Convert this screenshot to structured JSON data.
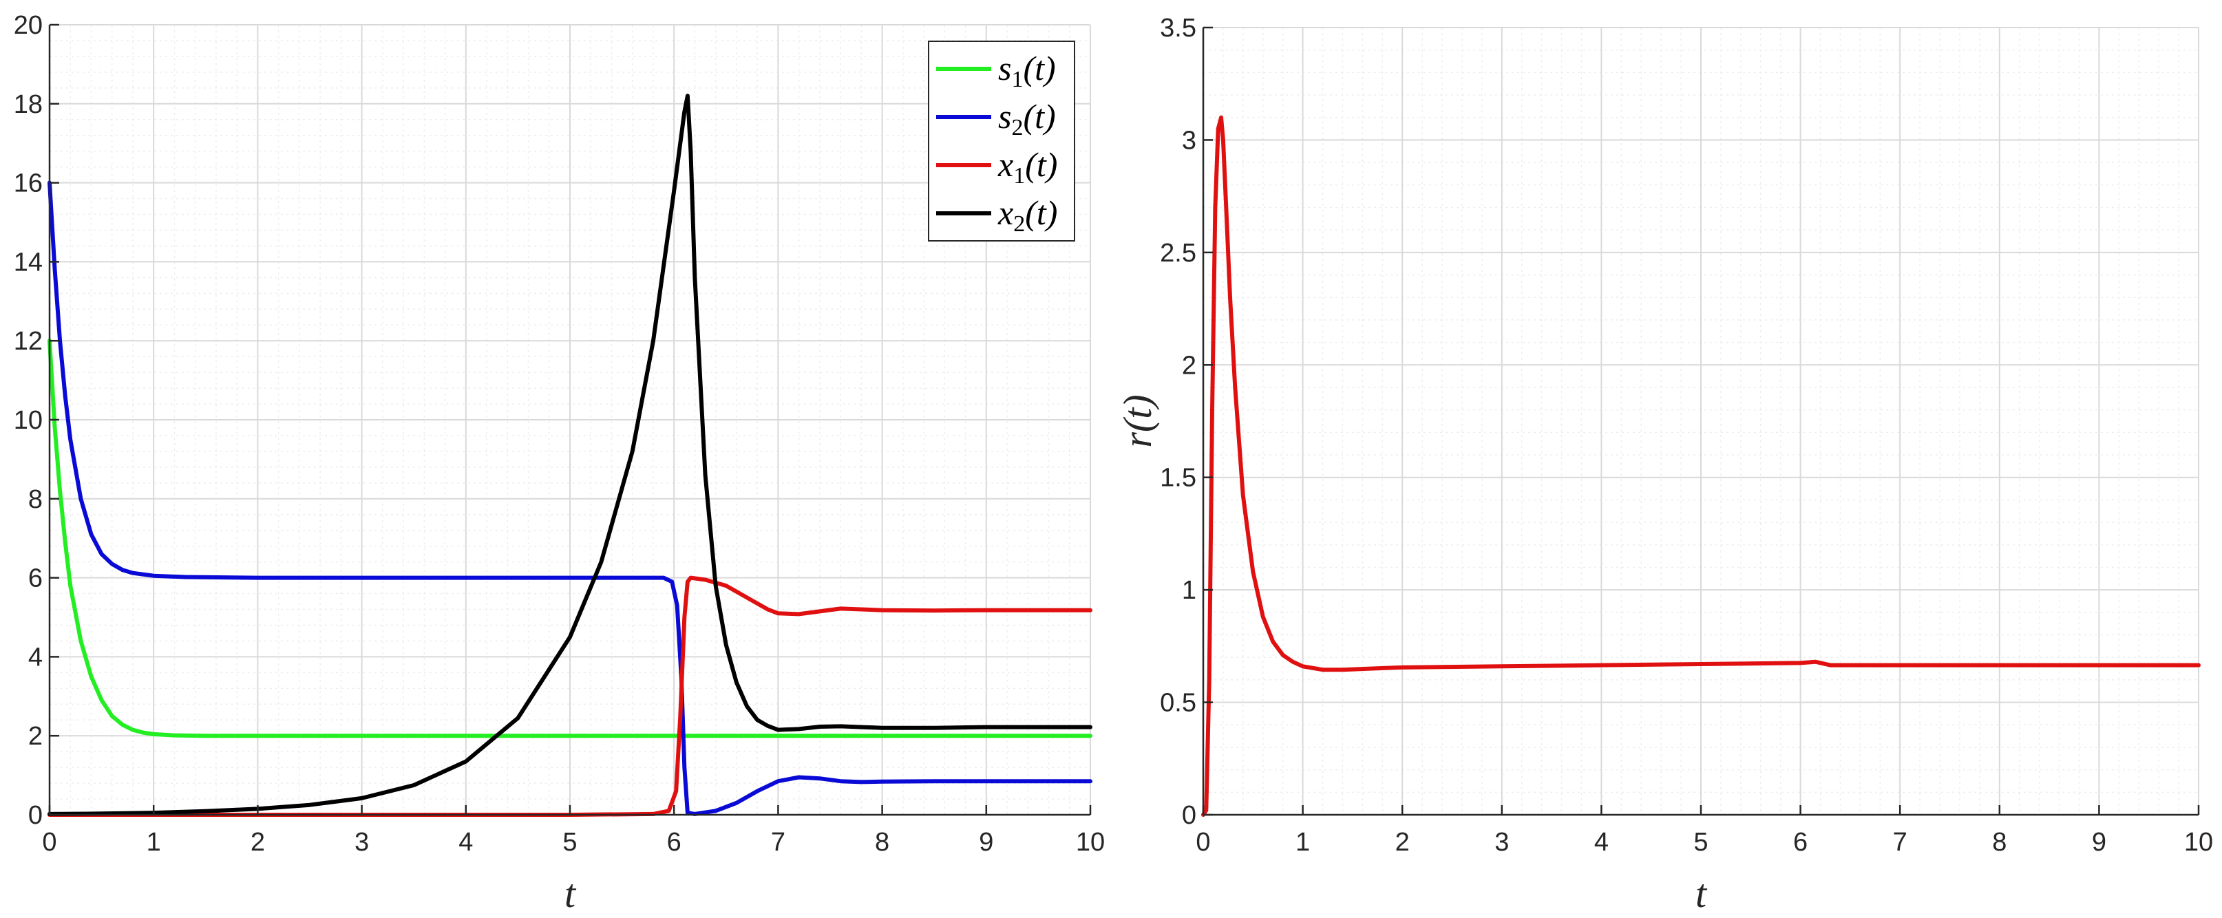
{
  "colors": {
    "s1": "#22ee22",
    "s2": "#0a0ad6",
    "x1": "#e01010",
    "x2": "#000000",
    "r": "#e01010",
    "grid_major": "#d9d9d9",
    "grid_minor": "#eeeeee",
    "axis": "#262626"
  },
  "chart_data": [
    {
      "type": "line",
      "xlabel": "t",
      "ylabel": "",
      "xlim": [
        0,
        10
      ],
      "ylim": [
        0,
        20
      ],
      "xticks": [
        "0",
        "1",
        "2",
        "3",
        "4",
        "5",
        "6",
        "7",
        "8",
        "9",
        "10"
      ],
      "yticks": [
        "0",
        "2",
        "4",
        "6",
        "8",
        "10",
        "12",
        "14",
        "16",
        "18",
        "20"
      ],
      "xtick_values": [
        0,
        1,
        2,
        3,
        4,
        5,
        6,
        7,
        8,
        9,
        10
      ],
      "ytick_values": [
        0,
        2,
        4,
        6,
        8,
        10,
        12,
        14,
        16,
        18,
        20
      ],
      "grid": true,
      "minor_grid": true,
      "legend_position": "top-right",
      "series": [
        {
          "name": "s1(t)",
          "legend_main": "s",
          "legend_sub": "1",
          "legend_arg": "(t)",
          "color_key": "s1",
          "x": [
            0,
            0.05,
            0.1,
            0.15,
            0.2,
            0.3,
            0.4,
            0.5,
            0.6,
            0.7,
            0.8,
            0.9,
            1.0,
            1.2,
            1.5,
            2,
            3,
            4,
            5,
            6,
            6.1,
            6.15,
            6.5,
            7,
            8,
            9,
            10
          ],
          "y": [
            12,
            9.8,
            8.2,
            6.9,
            5.8,
            4.4,
            3.5,
            2.9,
            2.5,
            2.28,
            2.15,
            2.08,
            2.04,
            2.01,
            2.0,
            2.0,
            2.0,
            2.0,
            2.0,
            2.0,
            2.0,
            2.0,
            2.0,
            2.0,
            2.0,
            2.0,
            2.0
          ]
        },
        {
          "name": "s2(t)",
          "legend_main": "s",
          "legend_sub": "2",
          "legend_arg": "(t)",
          "color_key": "s2",
          "x": [
            0,
            0.05,
            0.1,
            0.15,
            0.2,
            0.3,
            0.4,
            0.5,
            0.6,
            0.7,
            0.8,
            1.0,
            1.3,
            2,
            3,
            4,
            5,
            5.9,
            5.98,
            6.03,
            6.07,
            6.1,
            6.13,
            6.2,
            6.4,
            6.6,
            6.8,
            7.0,
            7.2,
            7.4,
            7.6,
            7.8,
            8.0,
            8.5,
            9,
            10
          ],
          "y": [
            16,
            13.8,
            12.0,
            10.6,
            9.5,
            8.0,
            7.1,
            6.6,
            6.35,
            6.2,
            6.12,
            6.05,
            6.02,
            6.0,
            6.0,
            6.0,
            6.0,
            6.0,
            5.9,
            5.3,
            3.5,
            1.2,
            0.05,
            0.02,
            0.1,
            0.3,
            0.6,
            0.85,
            0.95,
            0.92,
            0.85,
            0.83,
            0.84,
            0.85,
            0.85,
            0.85
          ]
        },
        {
          "name": "x1(t)",
          "legend_main": "x",
          "legend_sub": "1",
          "legend_arg": "(t)",
          "color_key": "x1",
          "x": [
            0,
            1,
            2,
            3,
            4,
            5,
            5.8,
            5.95,
            6.02,
            6.06,
            6.1,
            6.13,
            6.16,
            6.3,
            6.5,
            6.7,
            6.9,
            7.0,
            7.2,
            7.4,
            7.6,
            7.8,
            8.0,
            8.5,
            9,
            10
          ],
          "y": [
            0,
            0,
            0,
            0,
            0,
            0,
            0.02,
            0.1,
            0.6,
            2.5,
            5.0,
            5.9,
            6.0,
            5.95,
            5.8,
            5.5,
            5.2,
            5.1,
            5.08,
            5.15,
            5.22,
            5.2,
            5.18,
            5.17,
            5.18,
            5.18
          ]
        },
        {
          "name": "x2(t)",
          "legend_main": "x",
          "legend_sub": "2",
          "legend_arg": "(t)",
          "color_key": "x2",
          "x": [
            0,
            0.5,
            1,
            1.5,
            2,
            2.5,
            3,
            3.5,
            4,
            4.5,
            5,
            5.3,
            5.6,
            5.8,
            6.0,
            6.1,
            6.13,
            6.16,
            6.2,
            6.3,
            6.4,
            6.5,
            6.6,
            6.7,
            6.8,
            6.9,
            7.0,
            7.2,
            7.4,
            7.6,
            7.8,
            8.0,
            8.5,
            9,
            10
          ],
          "y": [
            0.02,
            0.03,
            0.05,
            0.09,
            0.15,
            0.25,
            0.42,
            0.75,
            1.35,
            2.45,
            4.5,
            6.4,
            9.2,
            12.0,
            15.8,
            17.8,
            18.2,
            16.8,
            13.6,
            8.6,
            5.8,
            4.3,
            3.35,
            2.75,
            2.4,
            2.25,
            2.15,
            2.17,
            2.23,
            2.24,
            2.22,
            2.2,
            2.2,
            2.22,
            2.22
          ]
        }
      ]
    },
    {
      "type": "line",
      "xlabel": "t",
      "ylabel": "r(t)",
      "xlim": [
        0,
        10
      ],
      "ylim": [
        0,
        3.5
      ],
      "xticks": [
        "0",
        "1",
        "2",
        "3",
        "4",
        "5",
        "6",
        "7",
        "8",
        "9",
        "10"
      ],
      "yticks": [
        "0",
        "0.5",
        "1",
        "1.5",
        "2",
        "2.5",
        "3",
        "3.5"
      ],
      "xtick_values": [
        0,
        1,
        2,
        3,
        4,
        5,
        6,
        7,
        8,
        9,
        10
      ],
      "ytick_values": [
        0,
        0.5,
        1,
        1.5,
        2,
        2.5,
        3,
        3.5
      ],
      "grid": true,
      "minor_grid": true,
      "series": [
        {
          "color_key": "r",
          "x": [
            0,
            0.03,
            0.06,
            0.09,
            0.12,
            0.15,
            0.18,
            0.2,
            0.23,
            0.27,
            0.32,
            0.4,
            0.5,
            0.6,
            0.7,
            0.8,
            0.9,
            1.0,
            1.2,
            1.4,
            1.7,
            2,
            3,
            4,
            5,
            6.0,
            6.15,
            6.3,
            7,
            8,
            9,
            10
          ],
          "y": [
            0,
            0.02,
            0.6,
            1.8,
            2.7,
            3.05,
            3.1,
            3.0,
            2.7,
            2.3,
            1.9,
            1.42,
            1.08,
            0.88,
            0.77,
            0.71,
            0.68,
            0.66,
            0.645,
            0.645,
            0.65,
            0.655,
            0.66,
            0.665,
            0.67,
            0.675,
            0.68,
            0.665,
            0.665,
            0.665,
            0.665,
            0.665
          ]
        }
      ]
    }
  ]
}
